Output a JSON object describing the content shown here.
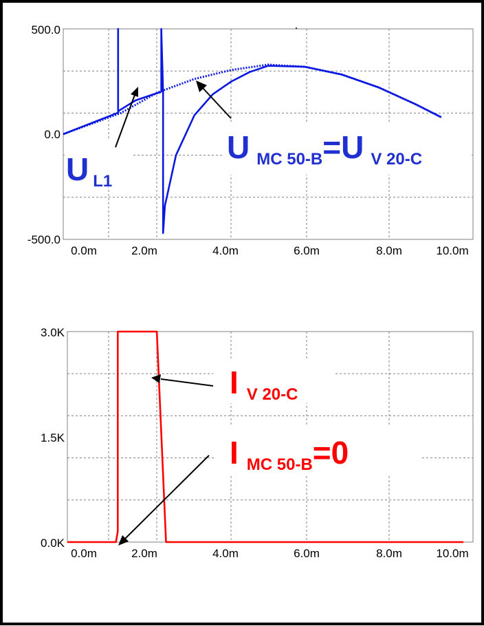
{
  "chart_data": [
    {
      "type": "line",
      "colors": {
        "series": "#0b18e0",
        "labels": "#1f2fd0"
      },
      "xlim": [
        0.0,
        0.01
      ],
      "ylim": [
        -500,
        500
      ],
      "xticks": [
        "0.0m",
        "2.0m",
        "4.0m",
        "6.0m",
        "8.0m",
        "10.0m"
      ],
      "yticks": [
        "500.0",
        "0.0",
        "-500.0"
      ],
      "grid": true,
      "annotations": {
        "ul1": {
          "main": "U",
          "sub": "L1"
        },
        "umc": {
          "main1": "U",
          "sub1": "MC 50-B",
          "eq": "=U",
          "sub2": "V 20-C"
        }
      },
      "series": [
        {
          "style": "dotted",
          "x": [
            0.0,
            0.001,
            0.002,
            0.003,
            0.004,
            0.005,
            0.006,
            0.007,
            0.008,
            0.009,
            0.0097
          ],
          "y": [
            0,
            100,
            198,
            262,
            305,
            330,
            320,
            283,
            222,
            142,
            80
          ]
        },
        {
          "style": "solid",
          "x": [
            0.0,
            0.0009,
            0.00093,
            0.00093,
            0.00093,
            0.00094,
            0.0014,
            0.0019,
            0.0021
          ],
          "y": [
            0,
            100,
            100,
            500,
            100,
            110,
            160,
            190,
            200
          ]
        },
        {
          "style": "solid",
          "x": [
            0.0021,
            0.0021,
            0.00215,
            0.00215,
            0.0022,
            0.0025,
            0.003,
            0.0035,
            0.004,
            0.0045,
            0.005,
            0.006,
            0.007,
            0.008,
            0.009,
            0.0097
          ],
          "y": [
            200,
            500,
            200,
            -470,
            -340,
            -100,
            90,
            190,
            250,
            295,
            325,
            320,
            283,
            222,
            142,
            80
          ]
        }
      ]
    },
    {
      "type": "line",
      "colors": {
        "series": "#ff0000",
        "labels": "#ff0000"
      },
      "xlim": [
        0.0,
        0.01
      ],
      "ylim": [
        0,
        3000
      ],
      "xticks": [
        "0.0m",
        "2.0m",
        "4.0m",
        "6.0m",
        "8.0m",
        "10.0m"
      ],
      "yticks": [
        "3.0K",
        "1.5K",
        "0.0K"
      ],
      "grid": true,
      "annotations": {
        "iv20": {
          "main": "I",
          "sub": "V 20-C"
        },
        "imc": {
          "main": "I",
          "sub": "MC 50-B",
          "eq": "=0"
        }
      },
      "series": [
        {
          "style": "solid",
          "x": [
            0.0,
            0.00087,
            0.00092,
            0.00092,
            0.00195,
            0.00198,
            0.00223,
            0.00228,
            0.0103
          ],
          "y": [
            0,
            0,
            150,
            3000,
            3000,
            3000,
            0,
            0,
            0
          ]
        }
      ]
    }
  ]
}
